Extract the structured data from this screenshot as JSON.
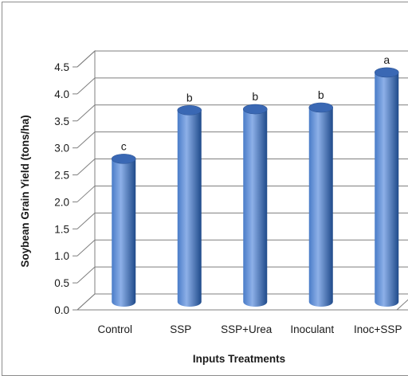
{
  "chart_data": {
    "type": "bar",
    "style": "3d-cylinder",
    "title": "",
    "xlabel": "Inputs Treatments",
    "ylabel": "Soybean Grain Yield (tons/ha)",
    "ylim": [
      0,
      4.5
    ],
    "ytick_step": 0.5,
    "yticks": [
      "0.0",
      "0.5",
      "1.0",
      "1.5",
      "2.0",
      "2.5",
      "3.0",
      "3.5",
      "4.0",
      "4.5"
    ],
    "grid": true,
    "legend": "none",
    "categories": [
      "Control",
      "SSP",
      "SSP+Urea",
      "Inoculant",
      "Inoc+SSP"
    ],
    "values": [
      2.65,
      3.55,
      3.57,
      3.6,
      4.25
    ],
    "data_labels": [
      "c",
      "b",
      "b",
      "b",
      "a"
    ],
    "colors": {
      "bar_light": "#8db0e8",
      "bar_mid": "#4a7cc8",
      "bar_dark": "#1f4a8a",
      "bar_top": "#3a68b4",
      "grid": "#7f7f7f"
    }
  }
}
